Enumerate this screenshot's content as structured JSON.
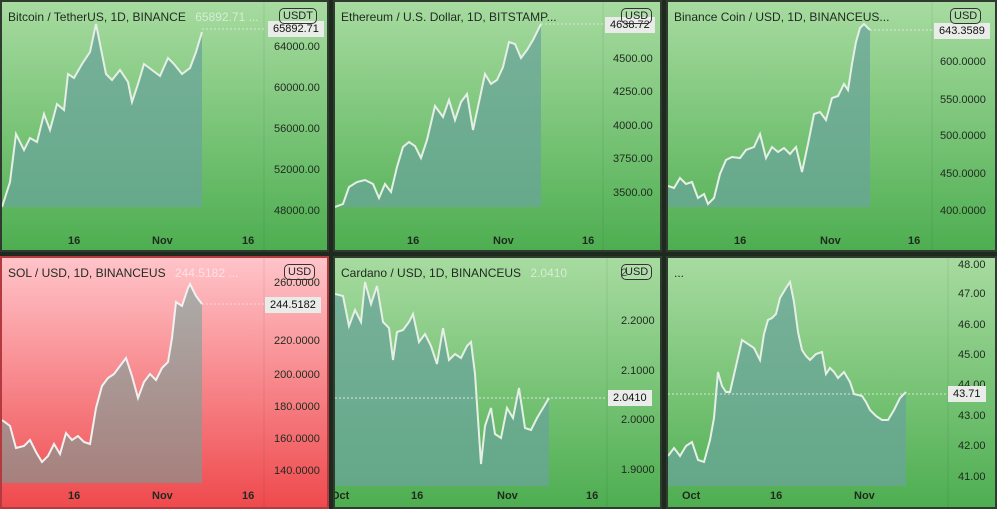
{
  "colors": {
    "panel_green_top": "#a7dba0",
    "panel_green_bottom": "#4eae51",
    "panel_red_top": "#ffc4c9",
    "panel_red_bottom": "#ef4a4d",
    "line": "#e6efe6",
    "area": "#6aa49a"
  },
  "panels": [
    {
      "title": "Bitcoin / TetherUS, 1D, BINANCE",
      "title_ghost": "65892.71 ...",
      "currency": "USDT",
      "price_label": "65892.71",
      "y_ticks": [
        "64000.00",
        "60000.00",
        "56000.00",
        "52000.00",
        "48000.00"
      ],
      "x_ticks": [
        "16",
        "Nov",
        "16"
      ]
    },
    {
      "title": "Ethereum / U.S. Dollar, 1D, BITSTAMP...",
      "title_ghost": "",
      "currency": "USD",
      "price_label": "4638.72",
      "y_ticks": [
        "4500.00",
        "4250.00",
        "4000.00",
        "3750.00",
        "3500.00"
      ],
      "x_ticks": [
        "16",
        "Nov",
        "16"
      ]
    },
    {
      "title": "Binance Coin / USD, 1D, BINANCEUS...",
      "title_ghost": "",
      "currency": "USD",
      "price_label": "643.3589",
      "y_ticks": [
        "600.0000",
        "550.0000",
        "500.0000",
        "450.0000",
        "400.0000"
      ],
      "x_ticks": [
        "16",
        "Nov",
        "16"
      ]
    },
    {
      "title": "SOL / USD, 1D, BINANCEUS",
      "title_ghost": "244.5182 ...",
      "currency": "USD",
      "price_label": "244.5182",
      "y_ticks": [
        "260.0000",
        "220.0000",
        "200.0000",
        "180.0000",
        "160.0000",
        "140.0000"
      ],
      "x_ticks": [
        "16",
        "Nov",
        "16"
      ]
    },
    {
      "title": "Cardano / USD, 1D, BINANCEUS",
      "title_ghost": "2.0410",
      "currency": "USD",
      "price_label": "2.0410",
      "y_ticks": [
        "2.2000",
        "2.1000",
        "2.0000",
        "1.9000"
      ],
      "x_ticks": [
        "Oct",
        "16",
        "Nov",
        "16"
      ]
    },
    {
      "title": "...",
      "title_ghost": "",
      "currency": "",
      "price_label": "43.71",
      "y_ticks": [
        "48.00",
        "47.00",
        "46.00",
        "45.00",
        "44.00",
        "43.00",
        "42.00",
        "41.00"
      ],
      "x_ticks": [
        "Oct",
        "16",
        "Nov"
      ]
    }
  ]
}
